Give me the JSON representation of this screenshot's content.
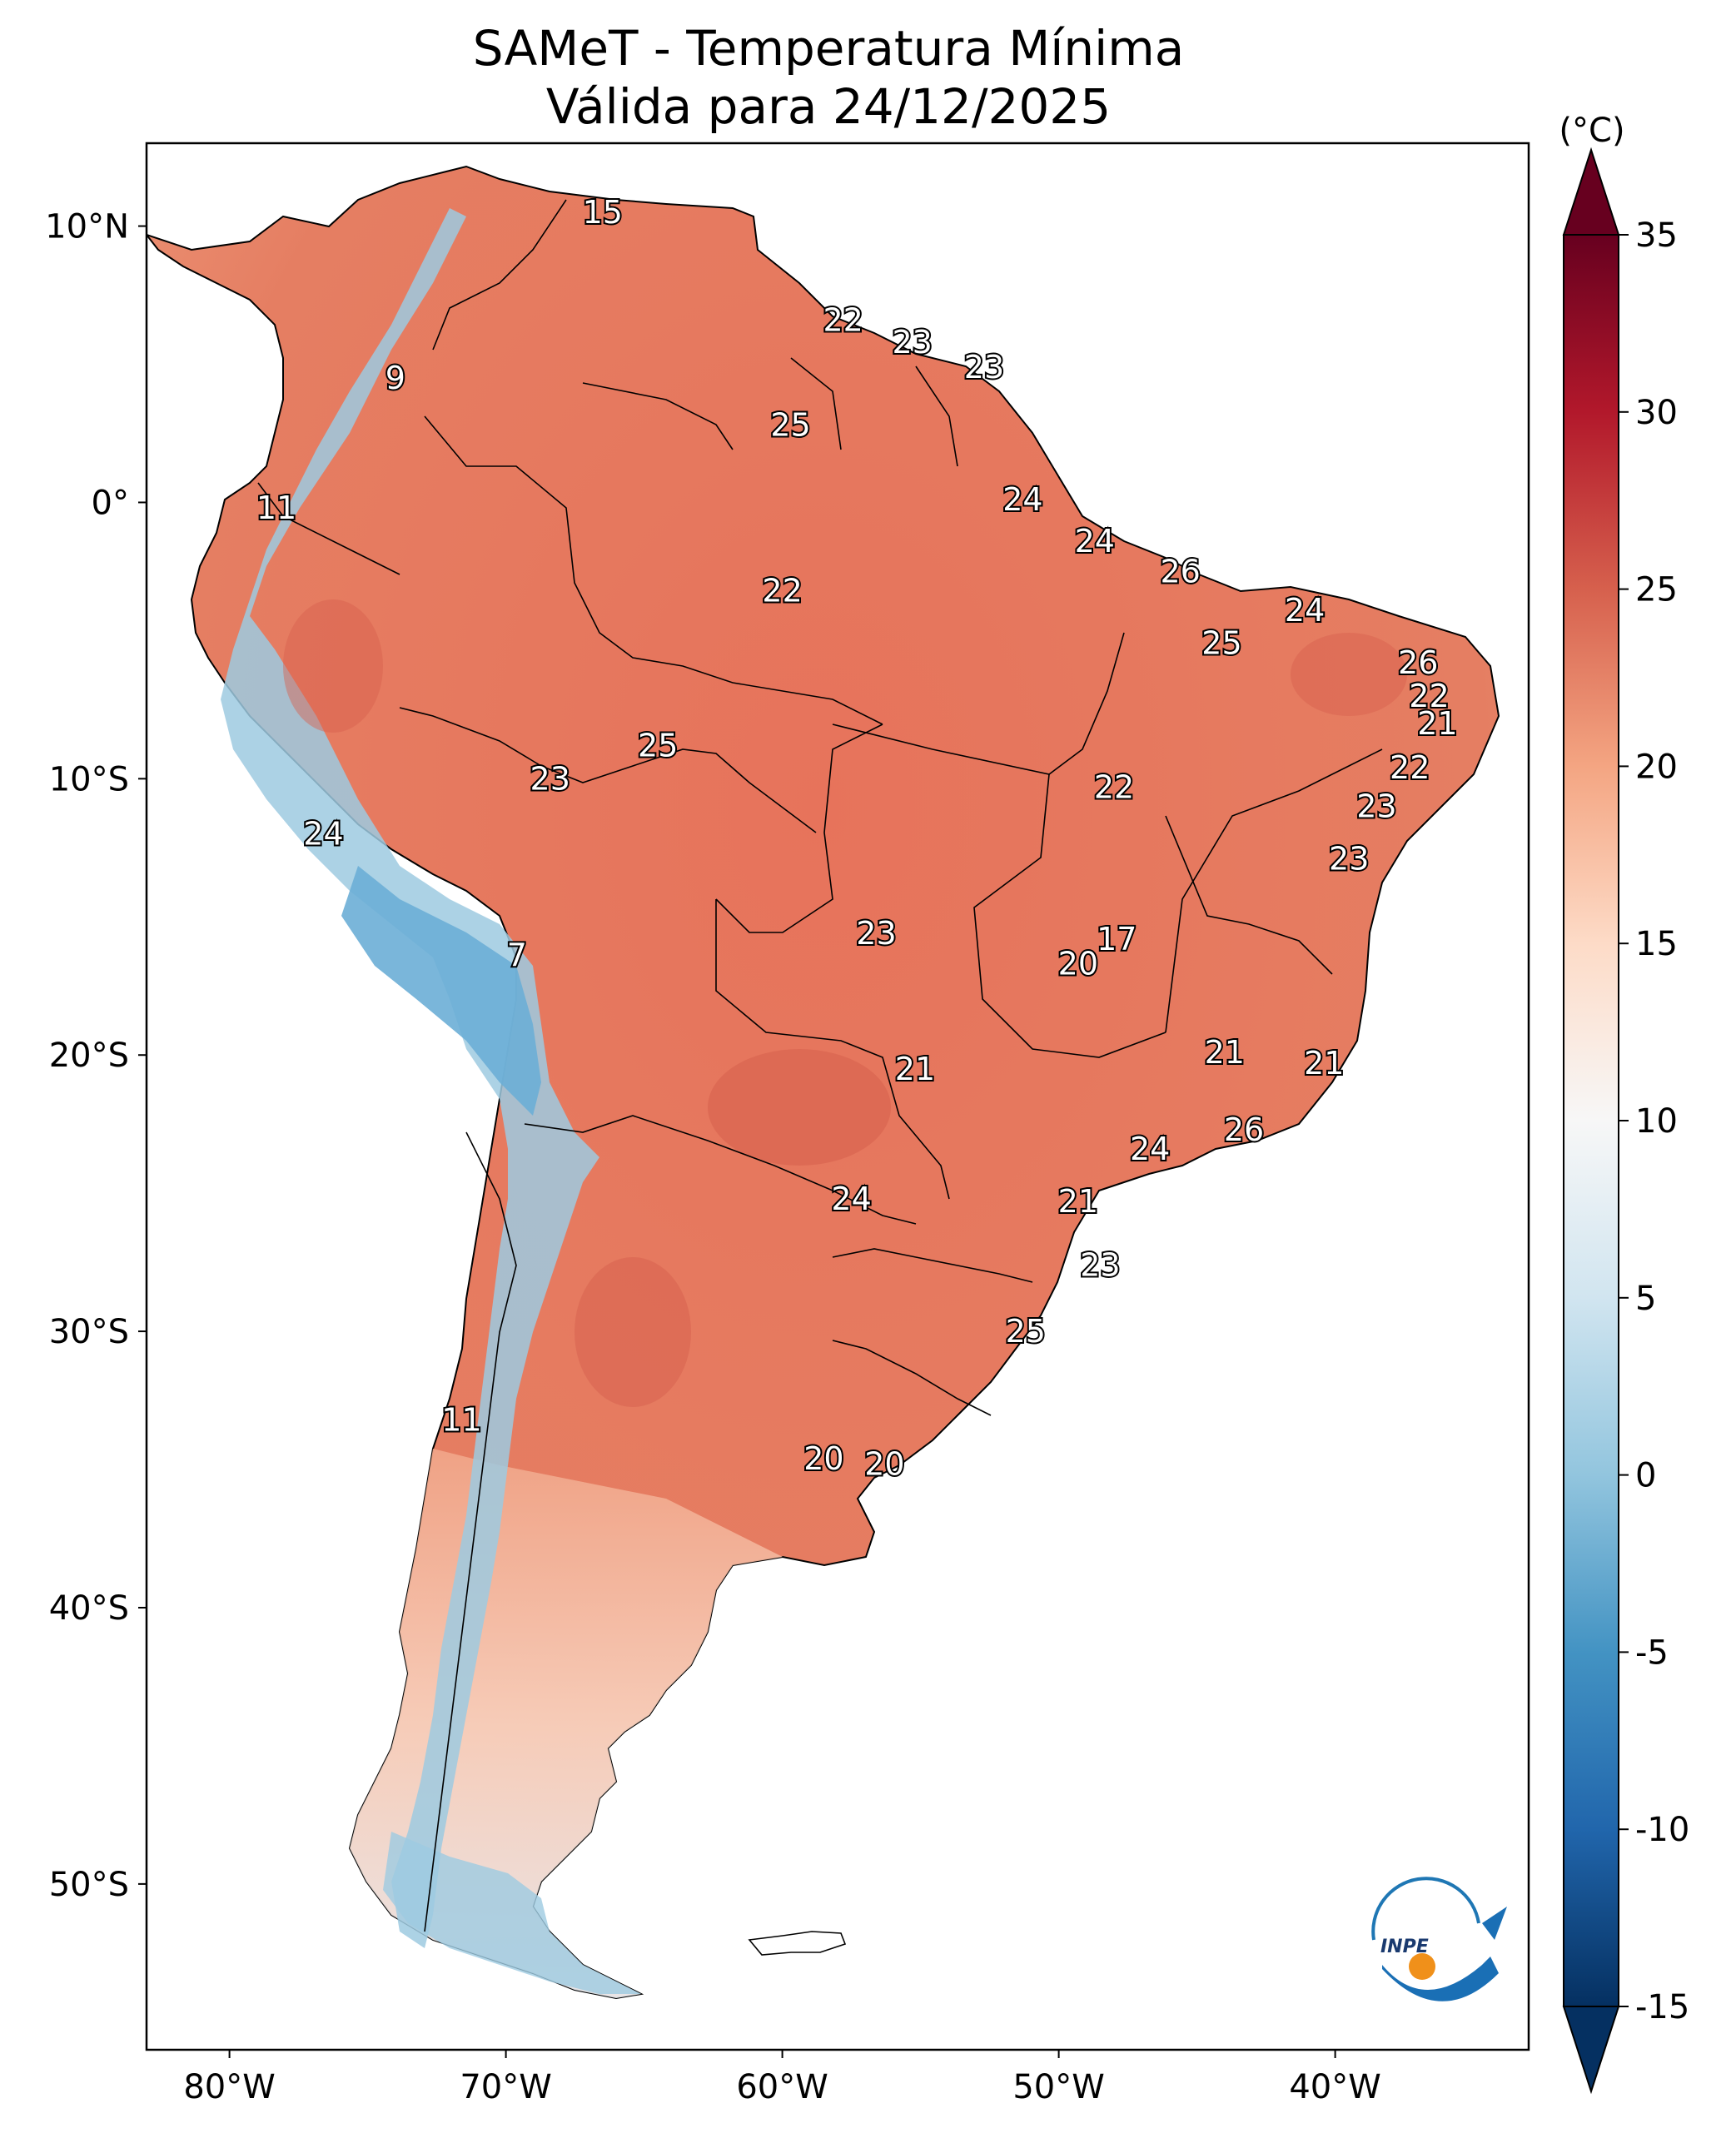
{
  "title": {
    "line1": "SAMeT - Temperatura Mínima",
    "line2": "Válida para 24/12/2025"
  },
  "axes": {
    "lat_labels": [
      "10°N",
      "0°",
      "10°S",
      "20°S",
      "30°S",
      "40°S",
      "50°S"
    ],
    "lon_labels": [
      "80°W",
      "70°W",
      "60°W",
      "50°W",
      "40°W"
    ]
  },
  "colorbar": {
    "unit": "(°C)",
    "ticks": [
      "35",
      "30",
      "25",
      "20",
      "15",
      "10",
      "5",
      "0",
      "-5",
      "-10",
      "-15"
    ],
    "colors": [
      "#053061",
      "#2166ac",
      "#4393c3",
      "#92c5de",
      "#d1e5f0",
      "#f7f7f7",
      "#fddbc7",
      "#f4a582",
      "#d6604d",
      "#b2182b",
      "#67001f"
    ]
  },
  "stations": [
    {
      "value": "15",
      "lon": -66.5,
      "lat": 10.5
    },
    {
      "value": "9",
      "lon": -74.0,
      "lat": 4.5
    },
    {
      "value": "22",
      "lon": -57.8,
      "lat": 6.6
    },
    {
      "value": "23",
      "lon": -55.3,
      "lat": 5.8
    },
    {
      "value": "23",
      "lon": -52.7,
      "lat": 4.9
    },
    {
      "value": "25",
      "lon": -59.7,
      "lat": 2.8
    },
    {
      "value": "11",
      "lon": -78.3,
      "lat": -0.2
    },
    {
      "value": "24",
      "lon": -51.3,
      "lat": 0.1
    },
    {
      "value": "24",
      "lon": -48.7,
      "lat": -1.4
    },
    {
      "value": "26",
      "lon": -45.6,
      "lat": -2.5
    },
    {
      "value": "22",
      "lon": -60.0,
      "lat": -3.2
    },
    {
      "value": "24",
      "lon": -41.1,
      "lat": -3.9
    },
    {
      "value": "25",
      "lon": -44.1,
      "lat": -5.1
    },
    {
      "value": "26",
      "lon": -37.0,
      "lat": -5.8
    },
    {
      "value": "22",
      "lon": -36.6,
      "lat": -7.0
    },
    {
      "value": "21",
      "lon": -36.3,
      "lat": -8.0
    },
    {
      "value": "25",
      "lon": -64.5,
      "lat": -8.8
    },
    {
      "value": "23",
      "lon": -68.4,
      "lat": -10.0
    },
    {
      "value": "22",
      "lon": -37.3,
      "lat": -9.6
    },
    {
      "value": "22",
      "lon": -48.0,
      "lat": -10.3
    },
    {
      "value": "23",
      "lon": -38.5,
      "lat": -11.0
    },
    {
      "value": "24",
      "lon": -76.6,
      "lat": -12.0
    },
    {
      "value": "23",
      "lon": -39.5,
      "lat": -12.9
    },
    {
      "value": "23",
      "lon": -56.6,
      "lat": -15.6
    },
    {
      "value": "17",
      "lon": -47.9,
      "lat": -15.8
    },
    {
      "value": "20",
      "lon": -49.3,
      "lat": -16.7
    },
    {
      "value": "7",
      "lon": -69.6,
      "lat": -16.4
    },
    {
      "value": "21",
      "lon": -44.0,
      "lat": -19.9
    },
    {
      "value": "21",
      "lon": -55.2,
      "lat": -20.5
    },
    {
      "value": "21",
      "lon": -40.4,
      "lat": -20.3
    },
    {
      "value": "26",
      "lon": -43.3,
      "lat": -22.7
    },
    {
      "value": "24",
      "lon": -46.7,
      "lat": -23.4
    },
    {
      "value": "21",
      "lon": -49.3,
      "lat": -25.3
    },
    {
      "value": "24",
      "lon": -57.5,
      "lat": -25.2
    },
    {
      "value": "23",
      "lon": -48.5,
      "lat": -27.6
    },
    {
      "value": "25",
      "lon": -51.2,
      "lat": -30.0
    },
    {
      "value": "11",
      "lon": -71.6,
      "lat": -33.2
    },
    {
      "value": "20",
      "lon": -58.5,
      "lat": -34.6
    },
    {
      "value": "20",
      "lon": -56.3,
      "lat": -34.8
    }
  ],
  "logo": {
    "text": "INPE"
  }
}
